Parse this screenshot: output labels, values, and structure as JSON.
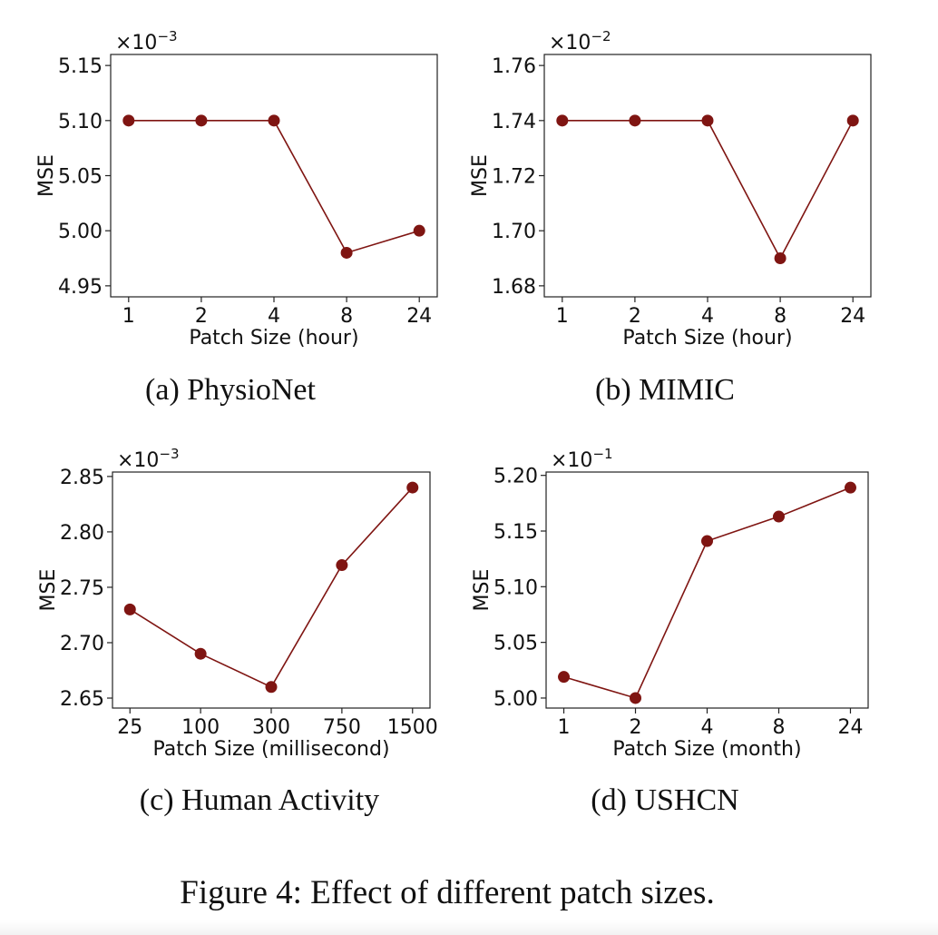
{
  "figure_caption": "Figure 4: Effect of different patch sizes.",
  "chart_data": [
    {
      "type": "line",
      "caption": "(a) PhysioNet",
      "xlabel": "Patch Size (hour)",
      "ylabel": "MSE",
      "y_scale_label": "×10",
      "y_scale_exponent": "−3",
      "categories": [
        "1",
        "2",
        "4",
        "8",
        "24"
      ],
      "values": [
        5.1,
        5.1,
        5.1,
        4.98,
        5.0
      ],
      "ylim": [
        4.94,
        5.16
      ],
      "yticks": [
        "4.95",
        "5.00",
        "5.05",
        "5.10",
        "5.15"
      ],
      "color": "#7f1512"
    },
    {
      "type": "line",
      "caption": "(b) MIMIC",
      "xlabel": "Patch Size (hour)",
      "ylabel": "MSE",
      "y_scale_label": "×10",
      "y_scale_exponent": "−2",
      "categories": [
        "1",
        "2",
        "4",
        "8",
        "24"
      ],
      "values": [
        1.74,
        1.74,
        1.74,
        1.69,
        1.74
      ],
      "ylim": [
        1.676,
        1.764
      ],
      "yticks": [
        "1.68",
        "1.70",
        "1.72",
        "1.74",
        "1.76"
      ],
      "color": "#7f1512"
    },
    {
      "type": "line",
      "caption": "(c) Human Activity",
      "xlabel": "Patch Size (millisecond)",
      "ylabel": "MSE",
      "y_scale_label": "×10",
      "y_scale_exponent": "−3",
      "categories": [
        "25",
        "100",
        "300",
        "750",
        "1500"
      ],
      "values": [
        2.73,
        2.69,
        2.66,
        2.77,
        2.84
      ],
      "ylim": [
        2.641,
        2.854
      ],
      "yticks": [
        "2.65",
        "2.70",
        "2.75",
        "2.80",
        "2.85"
      ],
      "color": "#7f1512"
    },
    {
      "type": "line",
      "caption": "(d) USHCN",
      "xlabel": "Patch Size (month)",
      "ylabel": "MSE",
      "y_scale_label": "×10",
      "y_scale_exponent": "−1",
      "categories": [
        "1",
        "2",
        "4",
        "8",
        "24"
      ],
      "values": [
        5.019,
        5.0,
        5.141,
        5.163,
        5.189
      ],
      "ylim": [
        4.991,
        5.203
      ],
      "yticks": [
        "5.00",
        "5.05",
        "5.10",
        "5.15",
        "5.20"
      ],
      "color": "#7f1512"
    }
  ]
}
